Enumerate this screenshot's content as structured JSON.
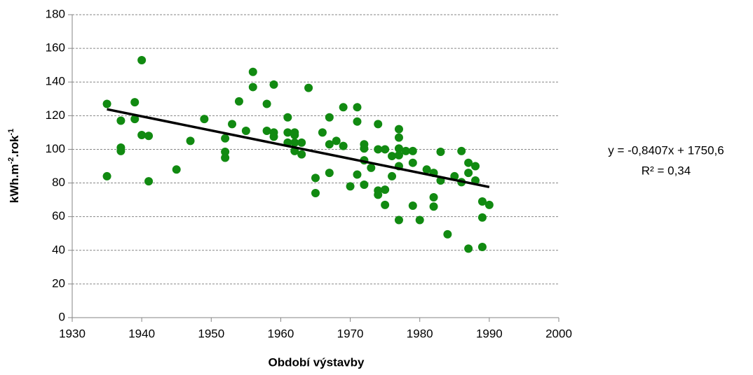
{
  "chart_data": {
    "type": "scatter",
    "x_label": "Období výstavby",
    "y_label": [
      "kWh.m",
      "-2",
      ".rok",
      "-1"
    ],
    "color": "#118a11",
    "x": [
      1935,
      1935,
      1937,
      1937,
      1937,
      1939,
      1939,
      1940,
      1940,
      1941,
      1941,
      1945,
      1947,
      1949,
      1952,
      1952,
      1952,
      1953,
      1954,
      1955,
      1956,
      1956,
      1958,
      1958,
      1959,
      1959,
      1959,
      1961,
      1961,
      1961,
      1962,
      1962,
      1962,
      1962,
      1963,
      1963,
      1964,
      1965,
      1965,
      1966,
      1967,
      1967,
      1967,
      1968,
      1969,
      1969,
      1970,
      1971,
      1971,
      1971,
      1972,
      1972,
      1972,
      1972,
      1973,
      1974,
      1974,
      1974,
      1974,
      1975,
      1975,
      1975,
      1976,
      1976,
      1977,
      1977,
      1977,
      1977,
      1977,
      1977,
      1978,
      1979,
      1979,
      1979,
      1980,
      1981,
      1982,
      1982,
      1982,
      1983,
      1983,
      1984,
      1985,
      1986,
      1986,
      1987,
      1987,
      1987,
      1988,
      1988,
      1989,
      1989,
      1989,
      1990
    ],
    "values": [
      127,
      84,
      117,
      101,
      99,
      128,
      118,
      153,
      108.5,
      108,
      81,
      88,
      105,
      118,
      98.5,
      95,
      106.5,
      115,
      128.5,
      111,
      146,
      137,
      127,
      111,
      138.5,
      110,
      107.5,
      119,
      110,
      104,
      110,
      108.5,
      99,
      104,
      104,
      97,
      136.5,
      83,
      74,
      110,
      119,
      103,
      86,
      105,
      125,
      102,
      78,
      125,
      116.5,
      85,
      103,
      100.5,
      93.5,
      79,
      89,
      115,
      100,
      75.5,
      73,
      100,
      76,
      67,
      96,
      84,
      112,
      107,
      100.5,
      96.5,
      90,
      58,
      99,
      99,
      92,
      66.5,
      58,
      88,
      86,
      71.5,
      66,
      98.5,
      81.5,
      49.5,
      84,
      99,
      80.5,
      92,
      86,
      41,
      90,
      81.5,
      69,
      59.5,
      42,
      67
    ],
    "trendline": {
      "x": [
        1935,
        1990
      ],
      "values": [
        123.8,
        77.6
      ],
      "color": "#000000",
      "equation": "y = -0,8407x + 1750,6",
      "r2": "R² = 0,34"
    },
    "xlim": [
      1930,
      2000
    ],
    "xticks": [
      1930,
      1940,
      1950,
      1960,
      1970,
      1980,
      1990,
      2000
    ],
    "ylim": [
      0,
      180
    ],
    "yticks": [
      0,
      20,
      40,
      60,
      80,
      100,
      120,
      140,
      160,
      180
    ],
    "grid": true
  }
}
